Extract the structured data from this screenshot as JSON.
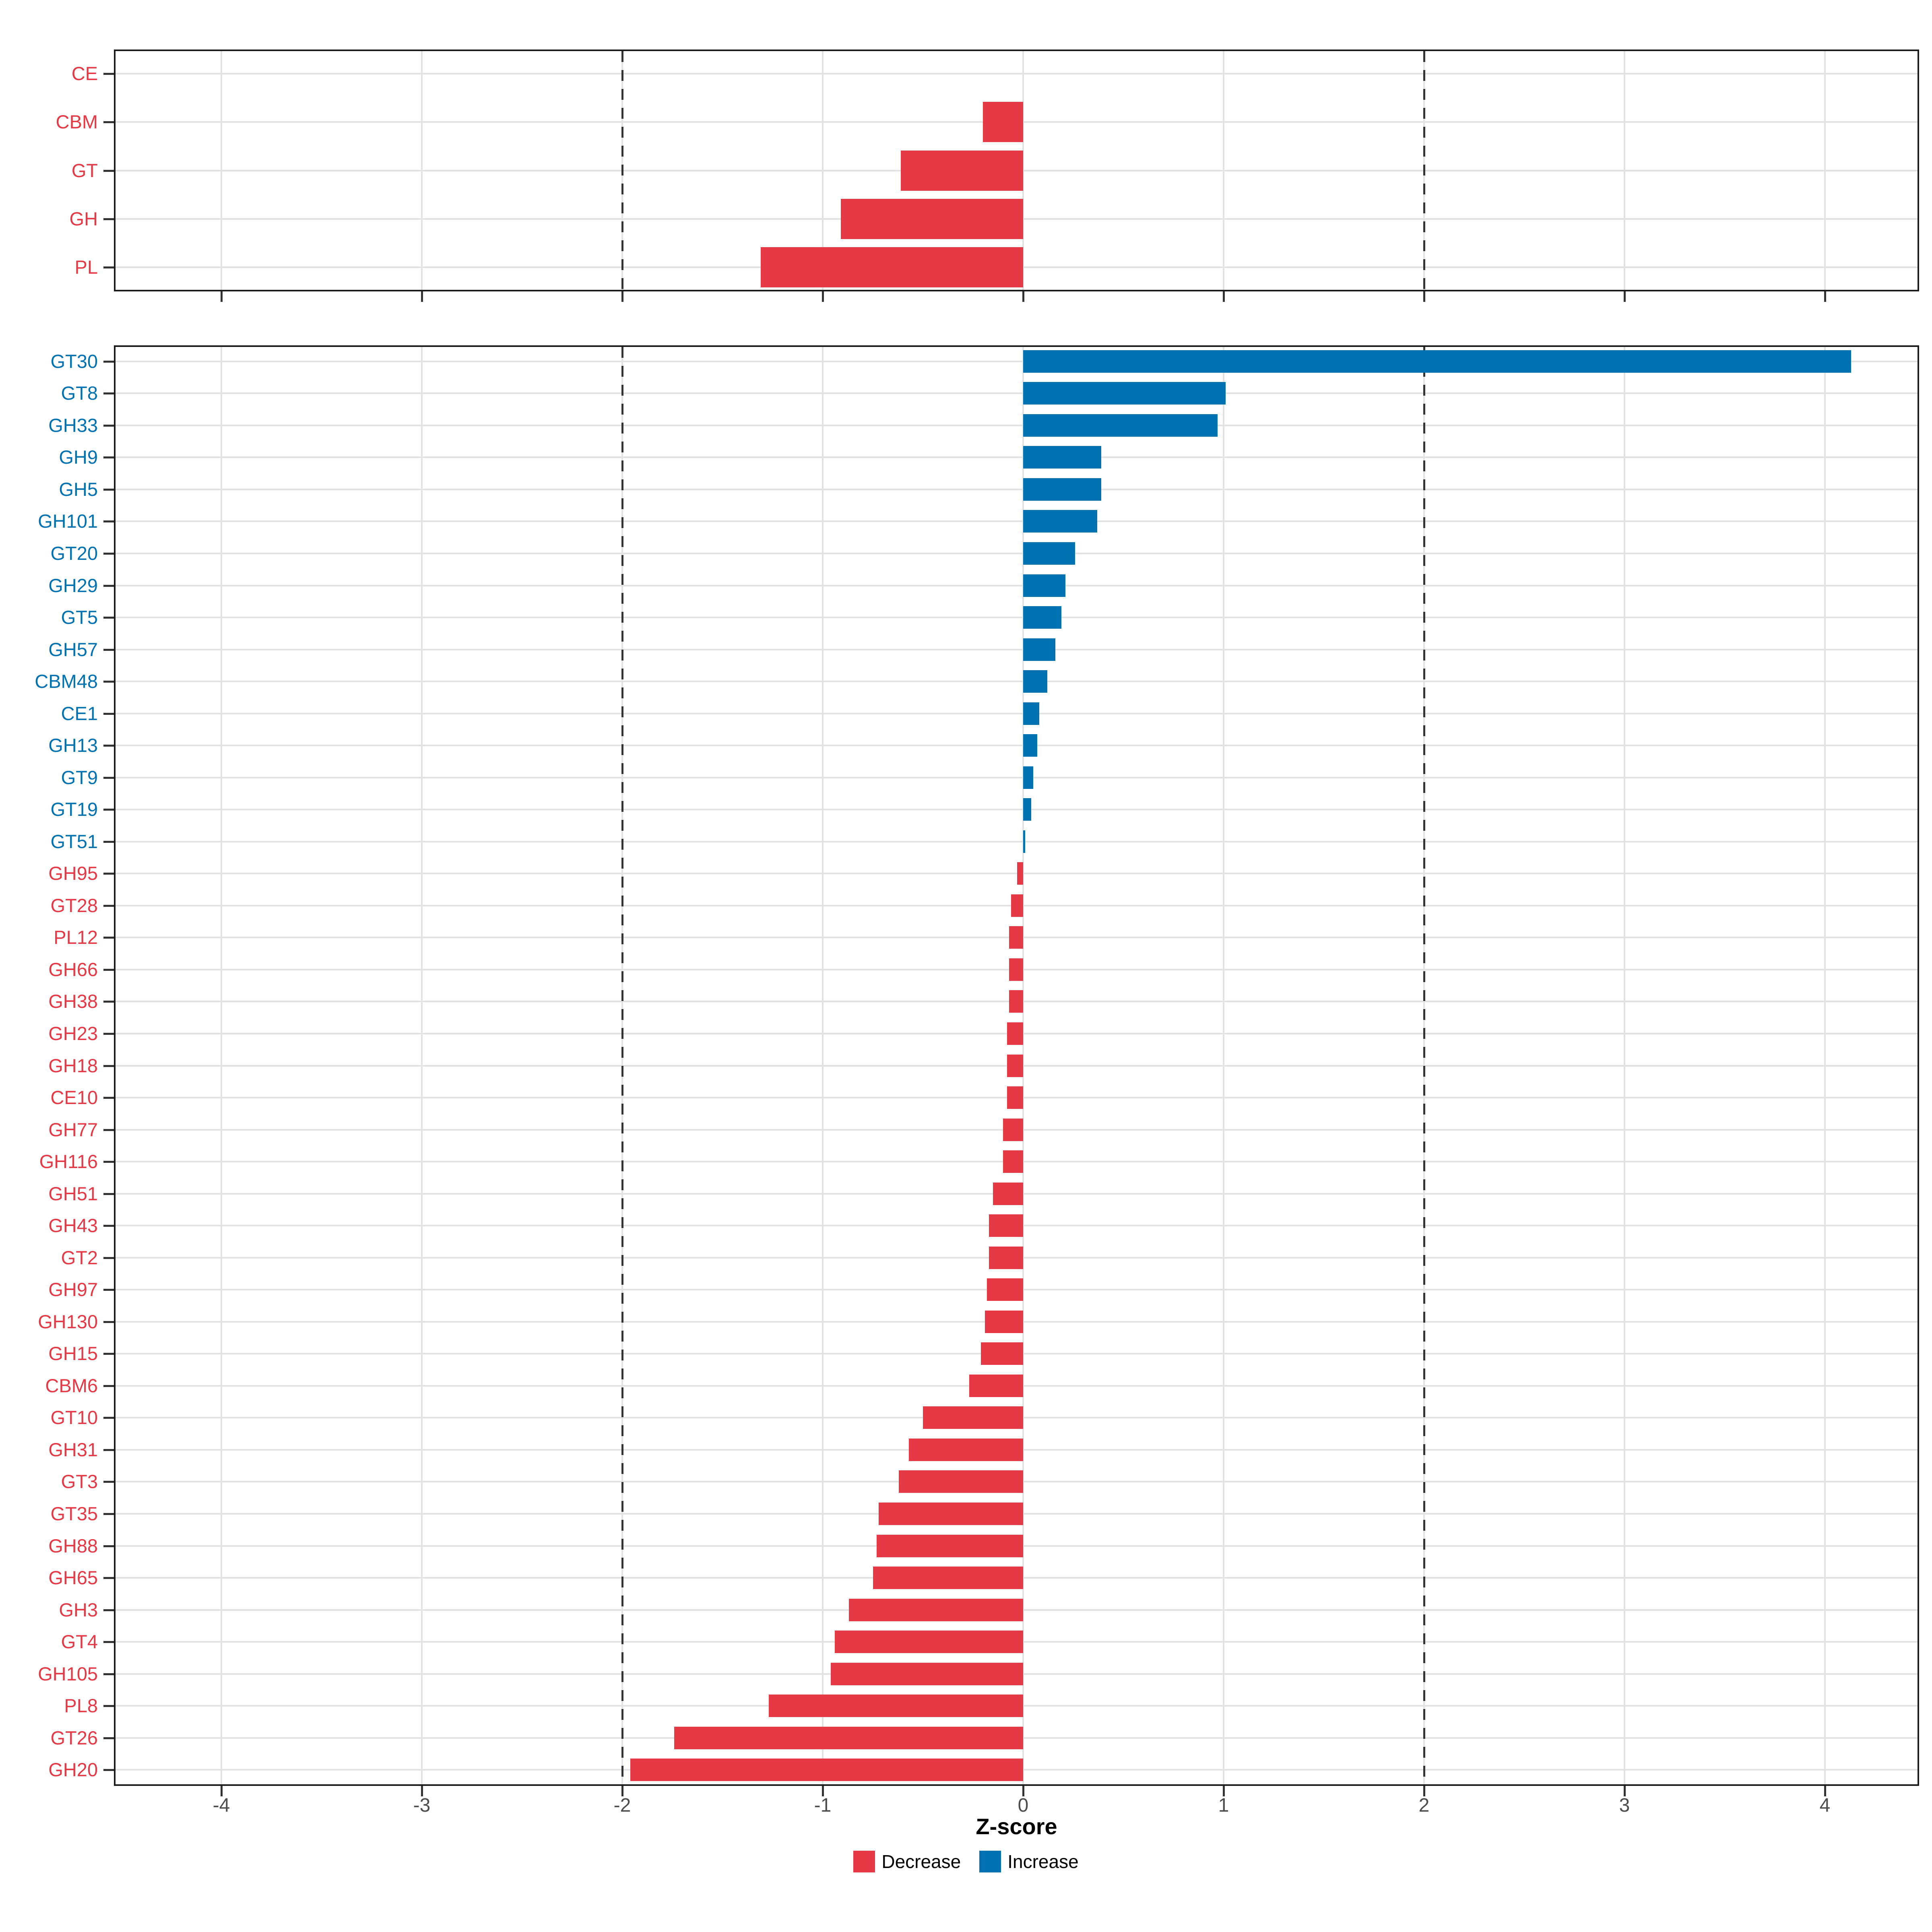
{
  "axis": {
    "title": "Z-score",
    "tick_values": [
      -4,
      -3,
      -2,
      -1,
      0,
      1,
      2,
      3,
      4
    ],
    "tick_labels": [
      "-4",
      "-3",
      "-2",
      "-1",
      "0",
      "1",
      "2",
      "3",
      "4"
    ],
    "dashed_reference_lines": [
      -2,
      2
    ],
    "range": [
      -4.54,
      4.47
    ]
  },
  "legend": {
    "items": [
      {
        "label": "Decrease",
        "color": "#E63946",
        "key": "decrease"
      },
      {
        "label": "Increase",
        "color": "#0072B2",
        "key": "increase"
      }
    ]
  },
  "colors": {
    "decrease": "#E63946",
    "increase": "#0072B2",
    "grid": "#e2e2e2",
    "panel_border": "#1b1b1b",
    "dashed_line": "#343434",
    "tick_text": "#4d4d4d"
  },
  "chart_data": [
    {
      "type": "bar",
      "orientation": "horizontal",
      "panel": "class-level",
      "title": "",
      "xlabel": "Z-score",
      "xlim": [
        -4.54,
        4.47
      ],
      "grid": true,
      "categories": [
        "CE",
        "CBM",
        "GT",
        "GH",
        "PL"
      ],
      "values": [
        0.0,
        -0.2,
        -0.61,
        -0.91,
        -1.31
      ],
      "groups": [
        "decrease",
        "decrease",
        "decrease",
        "decrease",
        "decrease"
      ]
    },
    {
      "type": "bar",
      "orientation": "horizontal",
      "panel": "family-level",
      "title": "",
      "xlabel": "Z-score",
      "xlim": [
        -4.54,
        4.47
      ],
      "grid": true,
      "categories": [
        "GT30",
        "GT8",
        "GH33",
        "GH9",
        "GH5",
        "GH101",
        "GT20",
        "GH29",
        "GT5",
        "GH57",
        "CBM48",
        "CE1",
        "GH13",
        "GT9",
        "GT19",
        "GT51",
        "GH95",
        "GT28",
        "PL12",
        "GH66",
        "GH38",
        "GH23",
        "GH18",
        "CE10",
        "GH77",
        "GH116",
        "GH51",
        "GH43",
        "GT2",
        "GH97",
        "GH130",
        "GH15",
        "CBM6",
        "GT10",
        "GH31",
        "GT3",
        "GT35",
        "GH88",
        "GH65",
        "GH3",
        "GT4",
        "GH105",
        "PL8",
        "GT26",
        "GH20"
      ],
      "values": [
        4.13,
        1.01,
        0.97,
        0.39,
        0.39,
        0.37,
        0.26,
        0.21,
        0.19,
        0.16,
        0.12,
        0.08,
        0.07,
        0.05,
        0.04,
        0.01,
        -0.03,
        -0.06,
        -0.07,
        -0.07,
        -0.07,
        -0.08,
        -0.08,
        -0.08,
        -0.1,
        -0.1,
        -0.15,
        -0.17,
        -0.17,
        -0.18,
        -0.19,
        -0.21,
        -0.27,
        -0.5,
        -0.57,
        -0.62,
        -0.72,
        -0.73,
        -0.75,
        -0.87,
        -0.94,
        -0.96,
        -1.27,
        -1.74,
        -1.96
      ],
      "groups": [
        "increase",
        "increase",
        "increase",
        "increase",
        "increase",
        "increase",
        "increase",
        "increase",
        "increase",
        "increase",
        "increase",
        "increase",
        "increase",
        "increase",
        "increase",
        "increase",
        "decrease",
        "decrease",
        "decrease",
        "decrease",
        "decrease",
        "decrease",
        "decrease",
        "decrease",
        "decrease",
        "decrease",
        "decrease",
        "decrease",
        "decrease",
        "decrease",
        "decrease",
        "decrease",
        "decrease",
        "decrease",
        "decrease",
        "decrease",
        "decrease",
        "decrease",
        "decrease",
        "decrease",
        "decrease",
        "decrease",
        "decrease",
        "decrease",
        "decrease"
      ]
    }
  ]
}
